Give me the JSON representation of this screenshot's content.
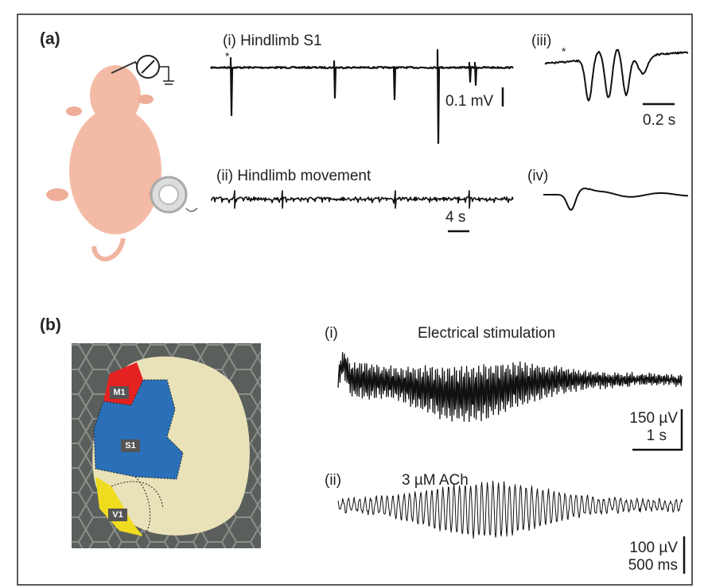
{
  "panel_a": {
    "label": "(a)",
    "trace_i": {
      "label": "(i) Hindlimb S1",
      "marker": "*",
      "scale": "0.1 mV"
    },
    "trace_ii": {
      "label": "(ii) Hindlimb movement",
      "scale": "4 s"
    },
    "trace_iii": {
      "label": "(iii)",
      "marker": "*",
      "scale": "0.2 s"
    },
    "trace_iv": {
      "label": "(iv)"
    }
  },
  "panel_b": {
    "label": "(b)",
    "regions": [
      "M1",
      "S1",
      "V1"
    ],
    "trace_i": {
      "label": "(i)",
      "title": "Electrical stimulation",
      "scale_v": "150 µV",
      "scale_t": "1 s"
    },
    "trace_ii": {
      "label": "(ii)",
      "title": "3 µM ACh",
      "scale_v": "100 µV",
      "scale_t": "500 ms"
    }
  }
}
